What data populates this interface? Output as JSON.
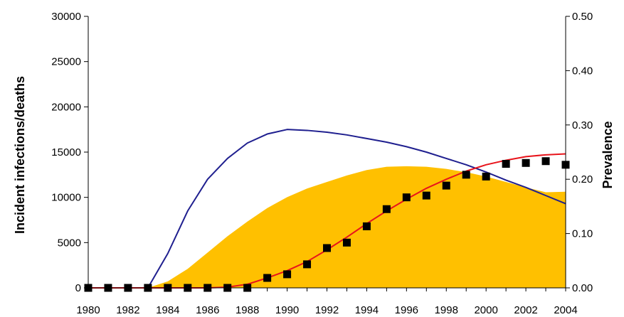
{
  "chart_data": {
    "type": "area",
    "title": "",
    "xlabel": "",
    "ylabel_left": "Incident infections/deaths",
    "ylabel_right": "Prevalence",
    "x_range": [
      1980,
      2004
    ],
    "y_left_range": [
      0,
      30000
    ],
    "y_right_range": [
      0,
      0.5
    ],
    "x_ticks": [
      "1980",
      "1982",
      "1984",
      "1986",
      "1988",
      "1990",
      "1992",
      "1994",
      "1996",
      "1998",
      "2000",
      "2002",
      "2004"
    ],
    "y_left_ticks": [
      "0",
      "5000",
      "10000",
      "15000",
      "20000",
      "25000",
      "30000"
    ],
    "y_right_ticks": [
      "0.00",
      "0.10",
      "0.20",
      "0.30",
      "0.40",
      "0.50"
    ],
    "grid": false,
    "legend": "none",
    "series": [
      {
        "kind": "area",
        "axis": "right",
        "color": "#FFC000",
        "x": [
          1983,
          1984,
          1985,
          1986,
          1987,
          1988,
          1989,
          1990,
          1991,
          1992,
          1993,
          1994,
          1995,
          1996,
          1997,
          1998,
          1999,
          2000,
          2001,
          2002,
          2003,
          2004
        ],
        "y": [
          0.0,
          0.012,
          0.035,
          0.065,
          0.095,
          0.122,
          0.147,
          0.167,
          0.183,
          0.195,
          0.207,
          0.217,
          0.223,
          0.224,
          0.223,
          0.219,
          0.213,
          0.205,
          0.195,
          0.185,
          0.176,
          0.177
        ]
      },
      {
        "kind": "line",
        "axis": "left",
        "color": "#1F1F8F",
        "x": [
          1980,
          1983,
          1984,
          1985,
          1986,
          1987,
          1988,
          1989,
          1990,
          1991,
          1992,
          1993,
          1994,
          1995,
          1996,
          1997,
          1998,
          1999,
          2000,
          2001,
          2002,
          2003,
          2004
        ],
        "y": [
          0,
          0,
          3800,
          8500,
          12000,
          14300,
          16000,
          17000,
          17500,
          17400,
          17200,
          16900,
          16500,
          16100,
          15600,
          15000,
          14300,
          13600,
          12800,
          11900,
          11100,
          10200,
          9300
        ]
      },
      {
        "kind": "line",
        "axis": "left",
        "color": "#E8141B",
        "x": [
          1980,
          1986,
          1987,
          1988,
          1989,
          1990,
          1991,
          1992,
          1993,
          1994,
          1995,
          1996,
          1997,
          1998,
          1999,
          2000,
          2001,
          2002,
          2003,
          2004
        ],
        "y": [
          0,
          0,
          80,
          400,
          1100,
          1900,
          2900,
          4200,
          5600,
          7100,
          8500,
          9800,
          11000,
          12000,
          12900,
          13600,
          14100,
          14500,
          14700,
          14800
        ]
      },
      {
        "kind": "scatter",
        "axis": "left",
        "color": "#000000",
        "x": [
          1980,
          1981,
          1982,
          1983,
          1984,
          1985,
          1986,
          1987,
          1988,
          1989,
          1990,
          1991,
          1992,
          1993,
          1994,
          1995,
          1996,
          1997,
          1998,
          1999,
          2000,
          2001,
          2002,
          2003,
          2004
        ],
        "y": [
          0,
          0,
          0,
          0,
          0,
          0,
          0,
          0,
          0,
          1100,
          1500,
          2600,
          4400,
          5000,
          6800,
          8700,
          10000,
          10200,
          11300,
          12500,
          12300,
          13700,
          13800,
          14000,
          13600
        ]
      }
    ]
  }
}
